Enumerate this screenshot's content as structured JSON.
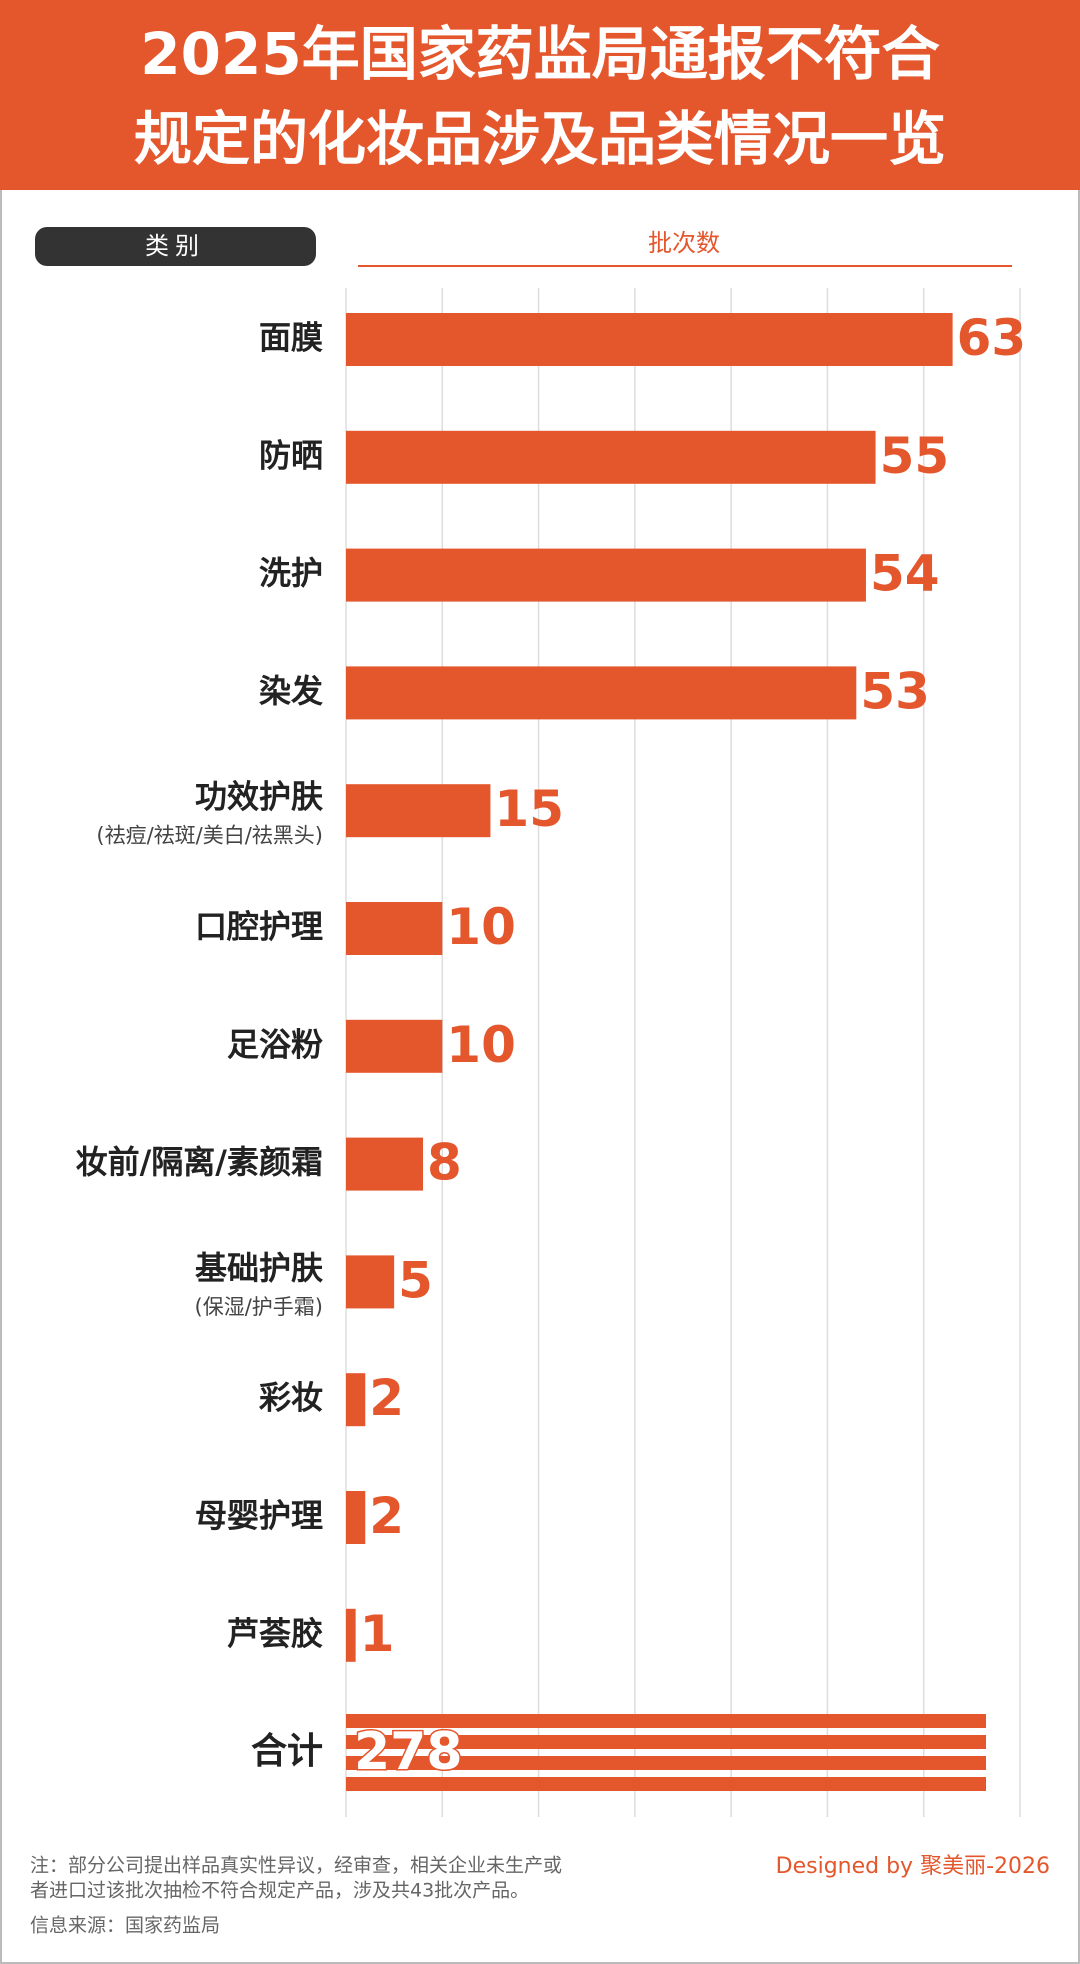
{
  "chart_data": {
    "type": "bar",
    "title_lines": [
      "2025年国家药监局通报不符合",
      "规定的化妆品涉及品类情况一览"
    ],
    "category_header": "类别",
    "value_header": "批次数",
    "categories": [
      "面膜",
      "防晒",
      "洗护",
      "染发",
      "功效护肤",
      "口腔护理",
      "足浴粉",
      "妆前/隔离/素颜霜",
      "基础护肤",
      "彩妆",
      "母婴护理",
      "芦荟胶"
    ],
    "category_notes": [
      null,
      null,
      null,
      null,
      "(祛痘/祛斑/美白/祛黑头)",
      null,
      null,
      null,
      "(保湿/护手霜)",
      null,
      null,
      null
    ],
    "values": [
      63,
      55,
      54,
      53,
      15,
      10,
      10,
      8,
      5,
      2,
      2,
      1
    ],
    "color": "#e4562c",
    "xlim": [
      0,
      70
    ],
    "xticks": [
      0,
      10,
      20,
      30,
      40,
      50,
      60,
      70
    ],
    "grid": true,
    "total": {
      "label": "合计",
      "value": 278
    },
    "notes": [
      "注：部分公司提出样品真实性异议，经审查，相关企业未生产或",
      "者进口过该批次抽检不符合规定产品，涉及共43批次产品。"
    ],
    "source": "信息来源：国家药监局",
    "credit": "Designed by 聚美丽-2026"
  }
}
